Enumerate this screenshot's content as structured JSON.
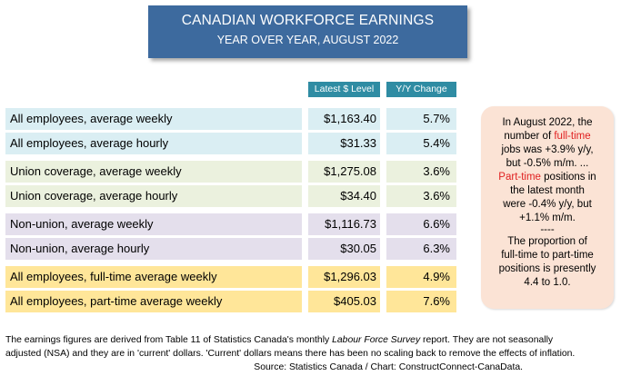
{
  "title": "CANADIAN WORKFORCE EARNINGS",
  "subtitle": "YEAR OVER YEAR, AUGUST 2022",
  "chart_data": {
    "type": "table",
    "columns": [
      "Latest $ Level",
      "Y/Y Change"
    ],
    "rows": [
      {
        "label": "All employees, average weekly",
        "level": "$1,163.40",
        "change": "5.7%",
        "color": "#daeef3"
      },
      {
        "label": "All employees, average hourly",
        "level": "$31.33",
        "change": "5.4%",
        "color": "#daeef3"
      },
      {
        "label": "Union coverage, average weekly",
        "level": "$1,275.08",
        "change": "3.6%",
        "color": "#ebf1de"
      },
      {
        "label": "Union coverage, average hourly",
        "level": "$34.40",
        "change": "3.6%",
        "color": "#ebf1de"
      },
      {
        "label": "Non-union, average weekly",
        "level": "$1,116.73",
        "change": "6.6%",
        "color": "#e4dfec"
      },
      {
        "label": "Non-union, average hourly",
        "level": "$30.05",
        "change": "6.3%",
        "color": "#e4dfec"
      },
      {
        "label": "All employees, full-time average weekly",
        "level": "$1,296.03",
        "change": "4.9%",
        "color": "#ffe699"
      },
      {
        "label": "All employees, part-time average weekly",
        "level": "$405.03",
        "change": "7.6%",
        "color": "#ffe699"
      }
    ]
  },
  "note": {
    "l1": "In August 2022, the",
    "l2a": "number of ",
    "l2b": "full-time",
    "l3": "jobs was +3.9% y/y,",
    "l4": "but -0.5% m/m. ...",
    "l5a": "Part-time",
    "l5b": " positions in",
    "l6": "the latest month",
    "l7": "were -0.4% y/y, but",
    "l8": "+1.1% m/m.",
    "l9": "----",
    "l10": "The proportion of",
    "l11": "full-time to part-time",
    "l12": "positions is presently",
    "l13": "4.4 to 1.0."
  },
  "footer": {
    "p1a": "The earnings figures are derived from Table 11 of Statistics Canada's monthly ",
    "p1b": "Labour Force Survey",
    "p1c": "  report. They are not seasonally",
    "p2": "adjusted (NSA) and they are in 'current' dollars. 'Current' dollars means there has been no scaling back to remove the effects of inflation.",
    "source": "Source: Statistics Canada / Chart: ConstructConnect-CanaData."
  },
  "colors": {
    "title_bg": "#3d6a9e",
    "header_bg": "#2f8ca3",
    "note_bg": "#fbe3d5",
    "highlight": "#e02020"
  }
}
